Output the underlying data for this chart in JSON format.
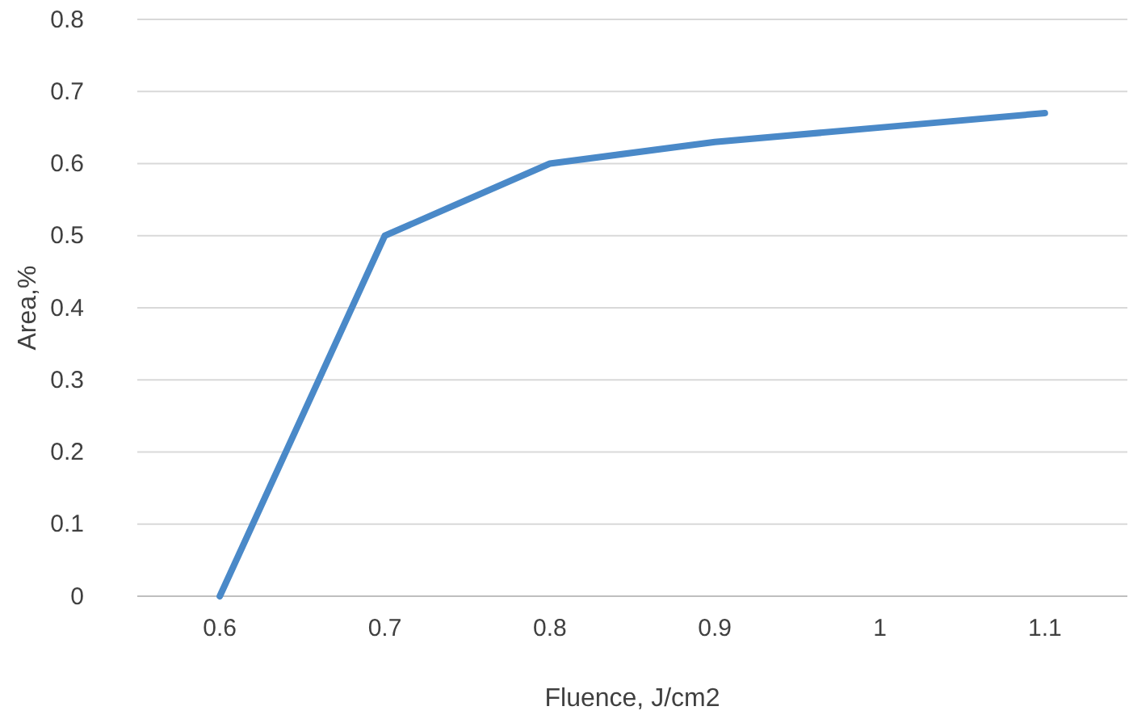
{
  "chart_data": {
    "type": "line",
    "xlabel": "Fluence, J/cm2",
    "ylabel": "Area,%",
    "categories": [
      "0.6",
      "0.7",
      "0.8",
      "0.9",
      "1",
      "1.1"
    ],
    "series": [
      {
        "color": "#4a89c8",
        "values": [
          0,
          0.5,
          0.6,
          0.63,
          0.65,
          0.67
        ]
      }
    ],
    "ylim": [
      0,
      0.8
    ],
    "yticks": [
      0,
      0.1,
      0.2,
      0.3,
      0.4,
      0.5,
      0.6,
      0.7,
      0.8
    ],
    "grid": "y",
    "marker": "none",
    "line_style": "solid"
  }
}
